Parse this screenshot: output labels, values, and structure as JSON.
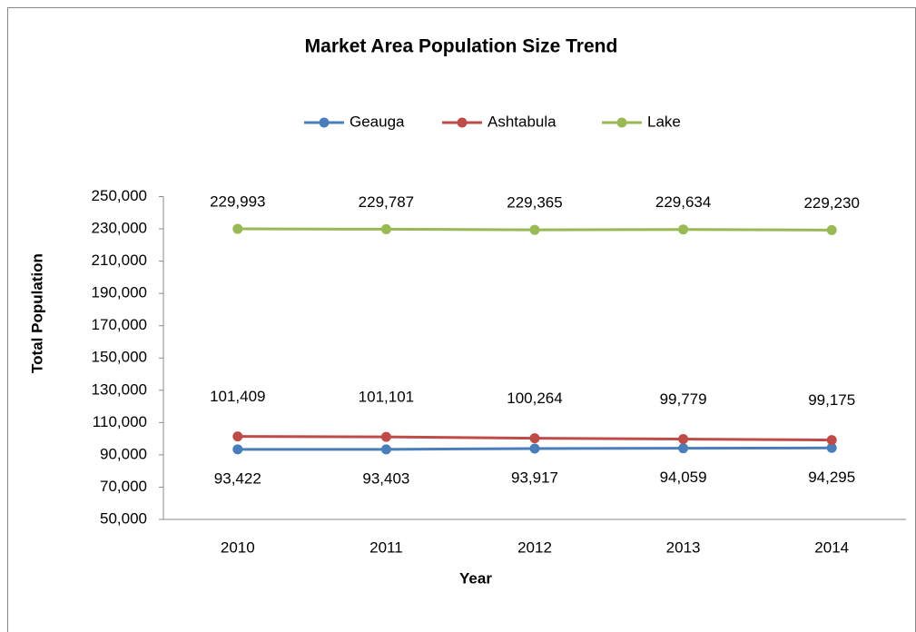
{
  "chart_data": {
    "type": "line",
    "title": "Market Area Population  Size Trend",
    "x_label": "Year",
    "y_label": "Total Population",
    "categories": [
      "2010",
      "2011",
      "2012",
      "2013",
      "2014"
    ],
    "series": [
      {
        "name": "Geauga",
        "color": "#4a7ebb",
        "values": [
          93422,
          93403,
          93917,
          94059,
          94295
        ],
        "value_labels": [
          "93,422",
          "93,403",
          "93,917",
          "94,059",
          "94,295"
        ]
      },
      {
        "name": "Ashtabula",
        "color": "#be4b48",
        "values": [
          101409,
          101101,
          100264,
          99779,
          99175
        ],
        "value_labels": [
          "101,409",
          "101,101",
          "100,264",
          "99,779",
          "99,175"
        ]
      },
      {
        "name": "Lake",
        "color": "#98b954",
        "values": [
          229993,
          229787,
          229365,
          229634,
          229230
        ],
        "value_labels": [
          "229,993",
          "229,787",
          "229,365",
          "229,634",
          "229,230"
        ]
      }
    ],
    "ylim": [
      50000,
      250000
    ],
    "yticks": [
      {
        "value": 50000,
        "label": "50,000"
      },
      {
        "value": 70000,
        "label": "70,000"
      },
      {
        "value": 90000,
        "label": "90,000"
      },
      {
        "value": 110000,
        "label": "110,000"
      },
      {
        "value": 130000,
        "label": "130,000"
      },
      {
        "value": 150000,
        "label": "150,000"
      },
      {
        "value": 170000,
        "label": "170,000"
      },
      {
        "value": 190000,
        "label": "190,000"
      },
      {
        "value": 210000,
        "label": "210,000"
      },
      {
        "value": 230000,
        "label": "230,000"
      },
      {
        "value": 250000,
        "label": "250,000"
      }
    ],
    "legend": "top",
    "grid": false
  }
}
